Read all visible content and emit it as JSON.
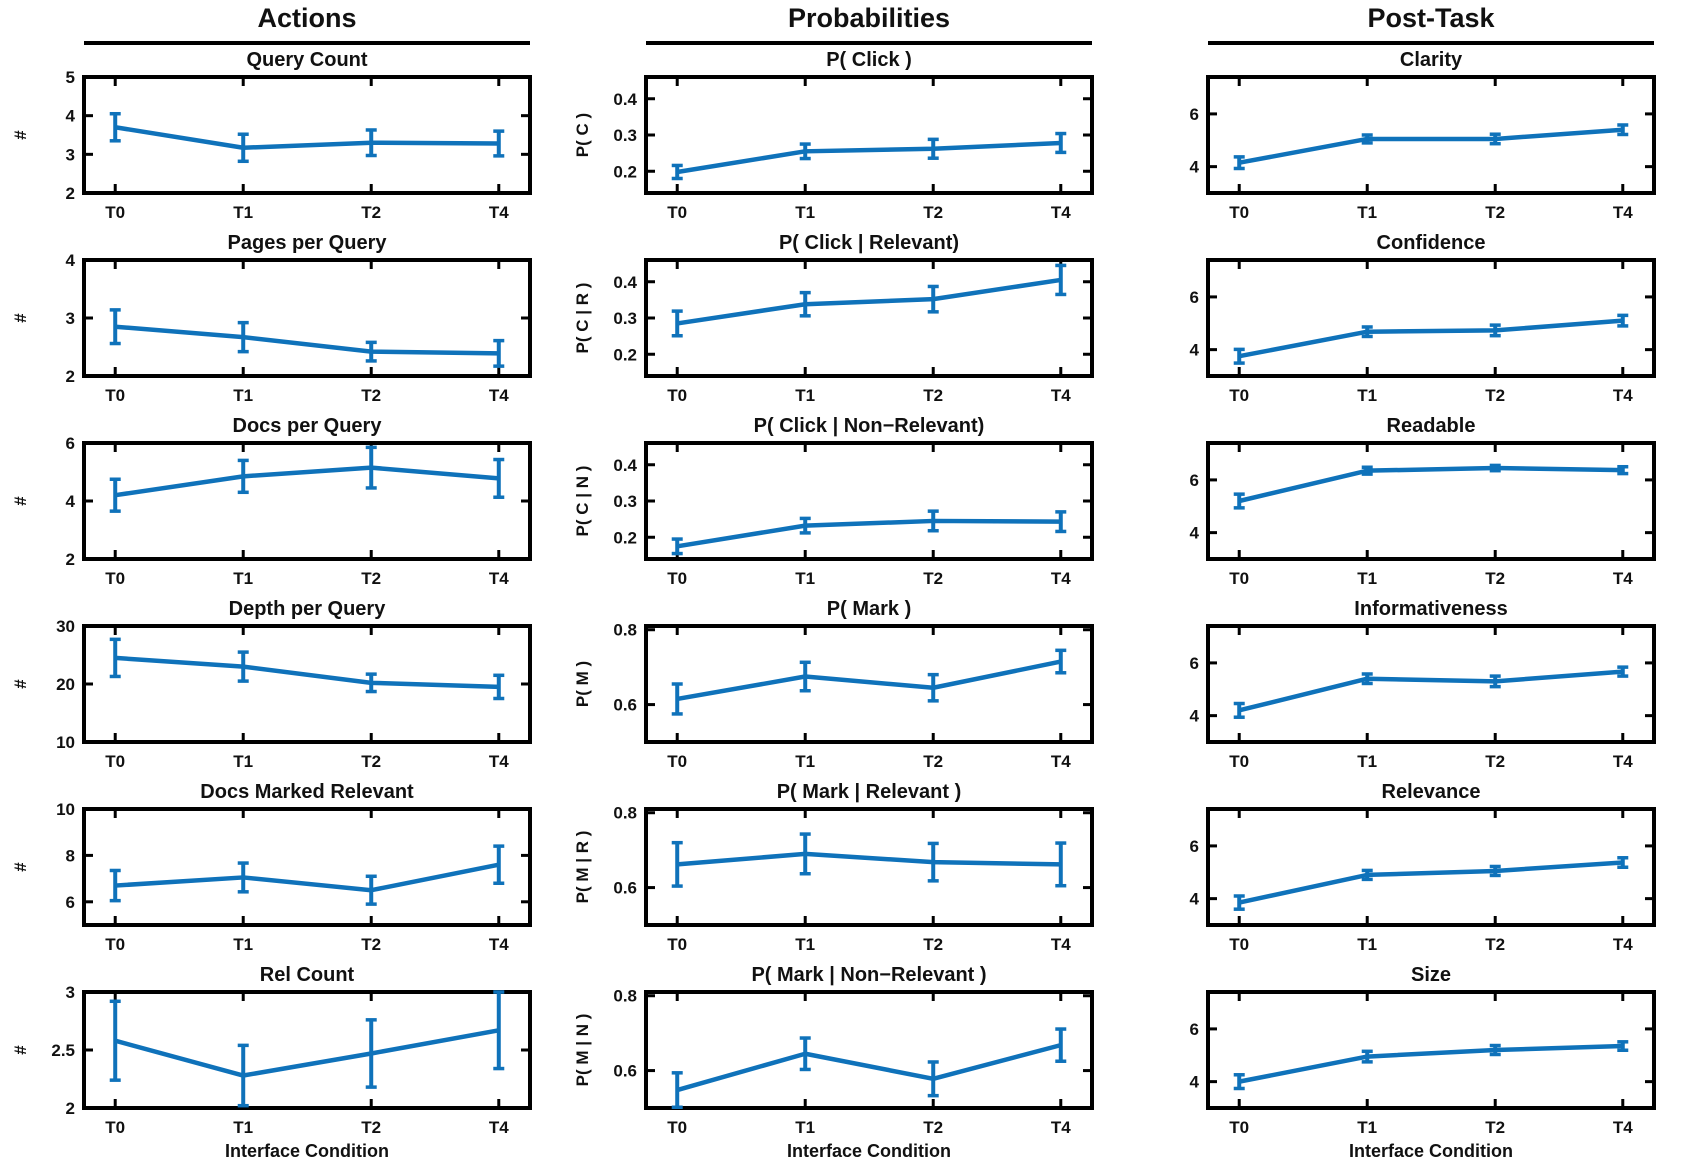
{
  "figure_title": "",
  "chart_data": {
    "type": "line",
    "variant": "errorbar-grid",
    "x_categories": [
      "T0",
      "T1",
      "T2",
      "T4"
    ],
    "xlabel_bottom_row": "Interface Condition",
    "line_color": "#0F72BA",
    "axis_color": "#000000",
    "text_color": "#111111",
    "grid": "off",
    "legend": "none",
    "columns": [
      {
        "header": "Actions",
        "charts": [
          {
            "id": "query-count",
            "title": "Query Count",
            "ylabel": "#",
            "ylim": [
              2,
              5
            ],
            "yticks": [
              2,
              3,
              4,
              5
            ],
            "values": [
              3.7,
              3.17,
              3.3,
              3.28
            ],
            "errors": [
              0.35,
              0.35,
              0.33,
              0.32
            ]
          },
          {
            "id": "pages-per-query",
            "title": "Pages per Query",
            "ylabel": "#",
            "ylim": [
              2,
              4
            ],
            "yticks": [
              2,
              3,
              4
            ],
            "values": [
              2.85,
              2.67,
              2.42,
              2.39
            ],
            "errors": [
              0.29,
              0.25,
              0.16,
              0.22
            ]
          },
          {
            "id": "docs-per-query",
            "title": "Docs per Query",
            "ylabel": "#",
            "ylim": [
              2,
              6
            ],
            "yticks": [
              2,
              4,
              6
            ],
            "values": [
              4.2,
              4.85,
              5.15,
              4.78
            ],
            "errors": [
              0.55,
              0.55,
              0.7,
              0.65
            ]
          },
          {
            "id": "depth-per-query",
            "title": "Depth per Query",
            "ylabel": "#",
            "ylim": [
              10,
              30
            ],
            "yticks": [
              10,
              20,
              30
            ],
            "values": [
              24.5,
              23.0,
              20.2,
              19.5
            ],
            "errors": [
              3.2,
              2.5,
              1.5,
              2.0
            ]
          },
          {
            "id": "docs-marked-relevant",
            "title": "Docs Marked Relevant",
            "ylabel": "#",
            "ylim": [
              5,
              10
            ],
            "yticks": [
              6,
              8,
              10
            ],
            "values": [
              6.7,
              7.05,
              6.5,
              7.6
            ],
            "errors": [
              0.65,
              0.62,
              0.6,
              0.8
            ]
          },
          {
            "id": "rel-count",
            "title": "Rel Count",
            "ylabel": "#",
            "ylim": [
              2,
              3
            ],
            "yticks": [
              2,
              2.5,
              3
            ],
            "values": [
              2.58,
              2.28,
              2.47,
              2.67
            ],
            "errors": [
              0.34,
              0.26,
              0.29,
              0.33
            ],
            "xlabel": "Interface Condition"
          }
        ]
      },
      {
        "header": "Probabilities",
        "charts": [
          {
            "id": "p-click",
            "title": "P( Click )",
            "ylabel": "P( C )",
            "ylim": [
              0.14,
              0.46
            ],
            "yticks": [
              0.2,
              0.3,
              0.4
            ],
            "values": [
              0.198,
              0.255,
              0.262,
              0.278
            ],
            "errors": [
              0.018,
              0.02,
              0.026,
              0.026
            ]
          },
          {
            "id": "p-click-relevant",
            "title": "P( Click | Relevant)",
            "ylabel": "P( C | R )",
            "ylim": [
              0.14,
              0.46
            ],
            "yticks": [
              0.2,
              0.3,
              0.4
            ],
            "values": [
              0.285,
              0.338,
              0.352,
              0.405
            ],
            "errors": [
              0.034,
              0.032,
              0.035,
              0.04
            ]
          },
          {
            "id": "p-click-non-relevant",
            "title": "P( Click | Non−Relevant)",
            "ylabel": "P( C | N )",
            "ylim": [
              0.14,
              0.46
            ],
            "yticks": [
              0.2,
              0.3,
              0.4
            ],
            "values": [
              0.175,
              0.232,
              0.245,
              0.243
            ],
            "errors": [
              0.02,
              0.02,
              0.027,
              0.027
            ]
          },
          {
            "id": "p-mark",
            "title": "P( Mark )",
            "ylabel": "P( M )",
            "ylim": [
              0.5,
              0.81
            ],
            "yticks": [
              0.6,
              0.8
            ],
            "values": [
              0.615,
              0.675,
              0.645,
              0.715
            ],
            "errors": [
              0.04,
              0.038,
              0.035,
              0.03
            ]
          },
          {
            "id": "p-mark-relevant",
            "title": "P( Mark | Relevant )",
            "ylabel": "P( M | R )",
            "ylim": [
              0.5,
              0.81
            ],
            "yticks": [
              0.6,
              0.8
            ],
            "values": [
              0.662,
              0.69,
              0.668,
              0.662
            ],
            "errors": [
              0.058,
              0.053,
              0.05,
              0.057
            ]
          },
          {
            "id": "p-mark-non-relevant",
            "title": "P( Mark | Non−Relevant )",
            "ylabel": "P( M | N )",
            "ylim": [
              0.5,
              0.81
            ],
            "yticks": [
              0.6,
              0.8
            ],
            "values": [
              0.548,
              0.645,
              0.578,
              0.668
            ],
            "errors": [
              0.046,
              0.042,
              0.045,
              0.043
            ],
            "xlabel": "Interface Condition"
          }
        ]
      },
      {
        "header": "Post-Task",
        "charts": [
          {
            "id": "clarity",
            "title": "Clarity",
            "ylabel": "",
            "ylim": [
              3,
              7.4
            ],
            "yticks": [
              4,
              6
            ],
            "values": [
              4.15,
              5.05,
              5.05,
              5.4
            ],
            "errors": [
              0.22,
              0.15,
              0.18,
              0.18
            ]
          },
          {
            "id": "confidence",
            "title": "Confidence",
            "ylabel": "",
            "ylim": [
              3,
              7.4
            ],
            "yticks": [
              4,
              6
            ],
            "values": [
              3.75,
              4.68,
              4.73,
              5.1
            ],
            "errors": [
              0.26,
              0.18,
              0.2,
              0.2
            ]
          },
          {
            "id": "readable",
            "title": "Readable",
            "ylabel": "",
            "ylim": [
              3,
              7.4
            ],
            "yticks": [
              4,
              6
            ],
            "values": [
              5.2,
              6.35,
              6.45,
              6.37
            ],
            "errors": [
              0.26,
              0.13,
              0.1,
              0.13
            ]
          },
          {
            "id": "informativeness",
            "title": "Informativeness",
            "ylabel": "",
            "ylim": [
              3,
              7.4
            ],
            "yticks": [
              4,
              6
            ],
            "values": [
              4.2,
              5.4,
              5.3,
              5.67
            ],
            "errors": [
              0.26,
              0.18,
              0.2,
              0.17
            ]
          },
          {
            "id": "relevance",
            "title": "Relevance",
            "ylabel": "",
            "ylim": [
              3,
              7.4
            ],
            "yticks": [
              4,
              6
            ],
            "values": [
              3.85,
              4.9,
              5.05,
              5.37
            ],
            "errors": [
              0.25,
              0.17,
              0.17,
              0.18
            ]
          },
          {
            "id": "size",
            "title": "Size",
            "ylabel": "",
            "ylim": [
              3,
              7.4
            ],
            "yticks": [
              4,
              6
            ],
            "values": [
              4.0,
              4.95,
              5.2,
              5.35
            ],
            "errors": [
              0.26,
              0.2,
              0.17,
              0.16
            ],
            "xlabel": "Interface Condition"
          }
        ]
      }
    ]
  }
}
